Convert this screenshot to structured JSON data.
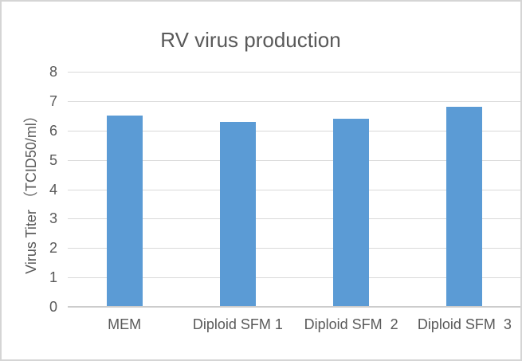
{
  "chart_data": {
    "type": "bar",
    "title": "RV virus production",
    "categories": [
      "MEM",
      "Diploid SFM 1",
      "Diploid SFM  2",
      "Diploid SFM  3"
    ],
    "values": [
      6.5,
      6.3,
      6.4,
      6.8
    ],
    "xlabel": "",
    "ylabel": "Virus Titer （TCID50/ml）",
    "ylim": [
      0,
      8
    ],
    "yticks": [
      0,
      1,
      2,
      3,
      4,
      5,
      6,
      7,
      8
    ],
    "grid": true,
    "legend": "none",
    "bar_color": "#5b9bd5",
    "colors": {
      "title_text": "#595959",
      "axis_text": "#595959",
      "gridline": "#d9d9d9",
      "axis_line": "#cccccc",
      "frame_border": "#d5d5d5",
      "background": "#ffffff"
    }
  }
}
